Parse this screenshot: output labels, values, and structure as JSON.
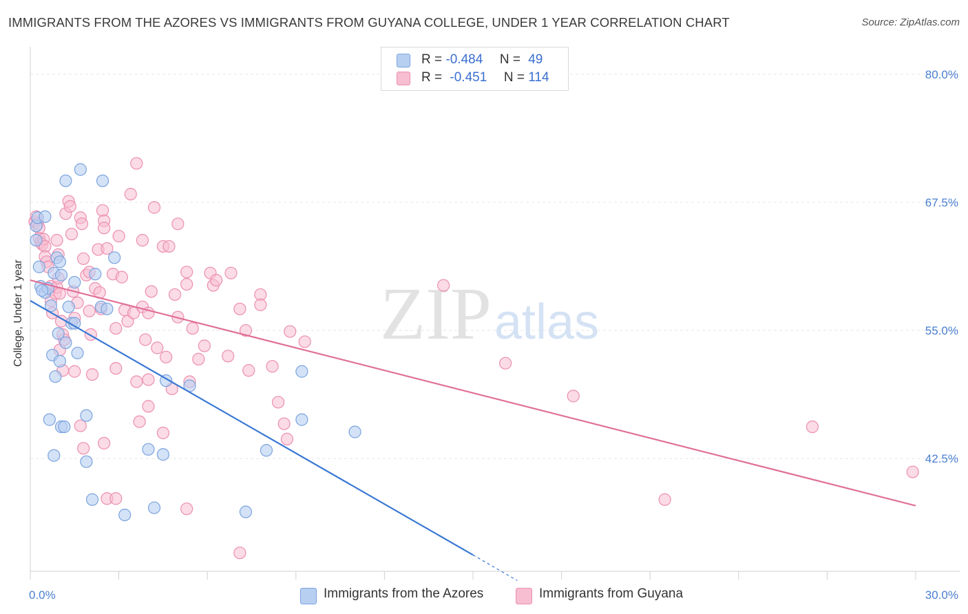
{
  "title": "IMMIGRANTS FROM THE AZORES VS IMMIGRANTS FROM GUYANA COLLEGE, UNDER 1 YEAR CORRELATION CHART",
  "source": "Source: ZipAtlas.com",
  "legend": [
    {
      "r_label": "R =",
      "r_value": "-0.484",
      "n_label": "N =",
      "n_value": "49"
    },
    {
      "r_label": "R =",
      "r_value": "-0.451",
      "n_label": "N =",
      "n_value": "114"
    }
  ],
  "watermark": {
    "zip": "ZIP",
    "atlas": "atlas"
  },
  "colors": {
    "azores_fill": "#b7cff1",
    "azores_stroke": "#7aa3de",
    "azores_line": "#3a78d4",
    "guyana_fill": "#f7bed1",
    "guyana_stroke": "#ec8eb0",
    "guyana_line": "#e07098",
    "tick_label": "#4a7fd0",
    "grid": "#e6e6e6"
  },
  "chart_data": {
    "type": "scatter",
    "title": "IMMIGRANTS FROM THE AZORES VS IMMIGRANTS FROM GUYANA COLLEGE, UNDER 1 YEAR CORRELATION CHART",
    "xlabel": "",
    "ylabel": "College, Under 1 year",
    "xlim": [
      0,
      30
    ],
    "ylim": [
      31.5,
      82
    ],
    "x_tick_labels": [
      "0.0%",
      "30.0%"
    ],
    "y_ticks": [
      42.5,
      55.0,
      67.5,
      80.0
    ],
    "y_tick_labels": [
      "42.5%",
      "55.0%",
      "67.5%",
      "80.0%"
    ],
    "legend_placement": "top-center",
    "series": [
      {
        "name": "Immigrants from the Azores",
        "color": "#b7cff1",
        "R": -0.484,
        "N": 49,
        "trend": {
          "x": [
            0.0,
            15.0
          ],
          "y": [
            57.9,
            33.1
          ],
          "dashed_to": {
            "x": 16.5,
            "y": 30.6
          }
        },
        "points": [
          [
            0.2,
            63.8
          ],
          [
            0.2,
            65.2
          ],
          [
            0.25,
            66.0
          ],
          [
            0.3,
            61.2
          ],
          [
            0.35,
            59.3
          ],
          [
            0.5,
            58.7
          ],
          [
            0.6,
            59.1
          ],
          [
            0.5,
            66.1
          ],
          [
            0.7,
            57.4
          ],
          [
            0.8,
            60.6
          ],
          [
            0.9,
            62.1
          ],
          [
            1.0,
            61.7
          ],
          [
            1.05,
            60.4
          ],
          [
            0.85,
            50.5
          ],
          [
            0.75,
            52.6
          ],
          [
            0.95,
            54.7
          ],
          [
            1.0,
            52.0
          ],
          [
            1.2,
            53.8
          ],
          [
            1.3,
            57.3
          ],
          [
            1.4,
            55.7
          ],
          [
            1.5,
            55.7
          ],
          [
            1.6,
            52.8
          ],
          [
            1.5,
            59.7
          ],
          [
            1.2,
            69.6
          ],
          [
            1.7,
            70.7
          ],
          [
            2.45,
            69.6
          ],
          [
            2.4,
            57.3
          ],
          [
            2.6,
            57.1
          ],
          [
            2.85,
            62.1
          ],
          [
            0.65,
            46.3
          ],
          [
            0.8,
            42.8
          ],
          [
            1.05,
            45.6
          ],
          [
            1.15,
            45.6
          ],
          [
            1.9,
            46.7
          ],
          [
            1.9,
            42.2
          ],
          [
            2.1,
            38.5
          ],
          [
            3.2,
            37.0
          ],
          [
            4.0,
            43.4
          ],
          [
            4.2,
            37.7
          ],
          [
            4.5,
            42.9
          ],
          [
            4.6,
            50.1
          ],
          [
            5.4,
            49.6
          ],
          [
            7.3,
            37.3
          ],
          [
            8.0,
            43.3
          ],
          [
            9.2,
            51.0
          ],
          [
            9.2,
            46.3
          ],
          [
            11.0,
            45.1
          ],
          [
            2.2,
            60.5
          ],
          [
            0.4,
            58.9
          ]
        ]
      },
      {
        "name": "Immigrants from Guyana",
        "color": "#f7bed1",
        "R": -0.451,
        "N": 114,
        "trend": {
          "x": [
            0.0,
            30.0
          ],
          "y": [
            59.9,
            37.9
          ]
        },
        "points": [
          [
            0.15,
            65.6
          ],
          [
            0.2,
            66.1
          ],
          [
            0.25,
            65.4
          ],
          [
            0.3,
            65.0
          ],
          [
            0.3,
            64.0
          ],
          [
            0.35,
            63.6
          ],
          [
            0.4,
            63.4
          ],
          [
            0.45,
            63.9
          ],
          [
            0.5,
            63.2
          ],
          [
            0.5,
            62.2
          ],
          [
            0.55,
            61.7
          ],
          [
            0.6,
            61.2
          ],
          [
            0.7,
            59.3
          ],
          [
            0.7,
            57.9
          ],
          [
            0.75,
            56.7
          ],
          [
            0.85,
            58.6
          ],
          [
            0.9,
            59.2
          ],
          [
            0.95,
            60.1
          ],
          [
            1.0,
            58.6
          ],
          [
            1.0,
            53.1
          ],
          [
            1.05,
            55.9
          ],
          [
            1.1,
            51.1
          ],
          [
            1.1,
            54.6
          ],
          [
            1.15,
            54.1
          ],
          [
            0.9,
            63.8
          ],
          [
            0.95,
            62.4
          ],
          [
            1.2,
            66.4
          ],
          [
            1.3,
            67.6
          ],
          [
            1.35,
            67.1
          ],
          [
            1.4,
            64.4
          ],
          [
            1.45,
            58.8
          ],
          [
            1.5,
            56.2
          ],
          [
            1.5,
            51.0
          ],
          [
            1.6,
            57.7
          ],
          [
            1.7,
            66.0
          ],
          [
            1.75,
            65.4
          ],
          [
            1.8,
            62.0
          ],
          [
            1.9,
            60.4
          ],
          [
            2.0,
            60.7
          ],
          [
            2.0,
            56.9
          ],
          [
            2.05,
            54.6
          ],
          [
            2.1,
            50.7
          ],
          [
            2.2,
            59.1
          ],
          [
            2.3,
            62.9
          ],
          [
            2.35,
            58.7
          ],
          [
            2.4,
            57.1
          ],
          [
            2.45,
            66.7
          ],
          [
            2.5,
            65.7
          ],
          [
            2.5,
            65.0
          ],
          [
            2.6,
            63.0
          ],
          [
            2.8,
            60.5
          ],
          [
            2.9,
            55.2
          ],
          [
            2.9,
            51.3
          ],
          [
            3.0,
            64.2
          ],
          [
            3.1,
            60.2
          ],
          [
            3.2,
            57.0
          ],
          [
            3.3,
            55.9
          ],
          [
            3.4,
            68.3
          ],
          [
            3.5,
            56.7
          ],
          [
            3.6,
            50.0
          ],
          [
            3.6,
            71.3
          ],
          [
            3.8,
            57.3
          ],
          [
            3.8,
            63.8
          ],
          [
            3.9,
            54.1
          ],
          [
            4.0,
            50.2
          ],
          [
            4.0,
            56.7
          ],
          [
            4.1,
            58.8
          ],
          [
            4.2,
            67.0
          ],
          [
            4.3,
            53.3
          ],
          [
            4.5,
            63.2
          ],
          [
            4.6,
            52.4
          ],
          [
            4.7,
            63.2
          ],
          [
            4.9,
            58.5
          ],
          [
            5.0,
            56.3
          ],
          [
            5.0,
            65.4
          ],
          [
            5.3,
            60.7
          ],
          [
            5.3,
            59.5
          ],
          [
            5.5,
            55.2
          ],
          [
            5.7,
            52.2
          ],
          [
            5.9,
            53.5
          ],
          [
            6.1,
            60.6
          ],
          [
            6.2,
            59.4
          ],
          [
            6.3,
            59.9
          ],
          [
            6.8,
            60.6
          ],
          [
            6.7,
            52.5
          ],
          [
            7.1,
            57.1
          ],
          [
            7.3,
            55.0
          ],
          [
            7.4,
            51.1
          ],
          [
            7.8,
            58.5
          ],
          [
            7.8,
            57.5
          ],
          [
            8.2,
            51.5
          ],
          [
            8.4,
            48.0
          ],
          [
            8.6,
            45.9
          ],
          [
            8.7,
            44.4
          ],
          [
            8.8,
            54.9
          ],
          [
            9.3,
            53.9
          ],
          [
            2.5,
            44.0
          ],
          [
            2.6,
            38.6
          ],
          [
            2.9,
            38.6
          ],
          [
            3.7,
            46.1
          ],
          [
            4.0,
            47.6
          ],
          [
            4.5,
            45.0
          ],
          [
            5.3,
            37.6
          ],
          [
            7.1,
            33.3
          ],
          [
            5.4,
            50.0
          ],
          [
            4.8,
            49.3
          ],
          [
            1.7,
            45.7
          ],
          [
            1.8,
            43.5
          ],
          [
            14.0,
            59.4
          ],
          [
            16.1,
            51.8
          ],
          [
            18.4,
            48.6
          ],
          [
            21.5,
            38.5
          ],
          [
            26.5,
            45.6
          ],
          [
            29.9,
            41.2
          ]
        ]
      }
    ]
  },
  "bottom_legend": [
    "Immigrants from the Azores",
    "Immigrants from Guyana"
  ]
}
